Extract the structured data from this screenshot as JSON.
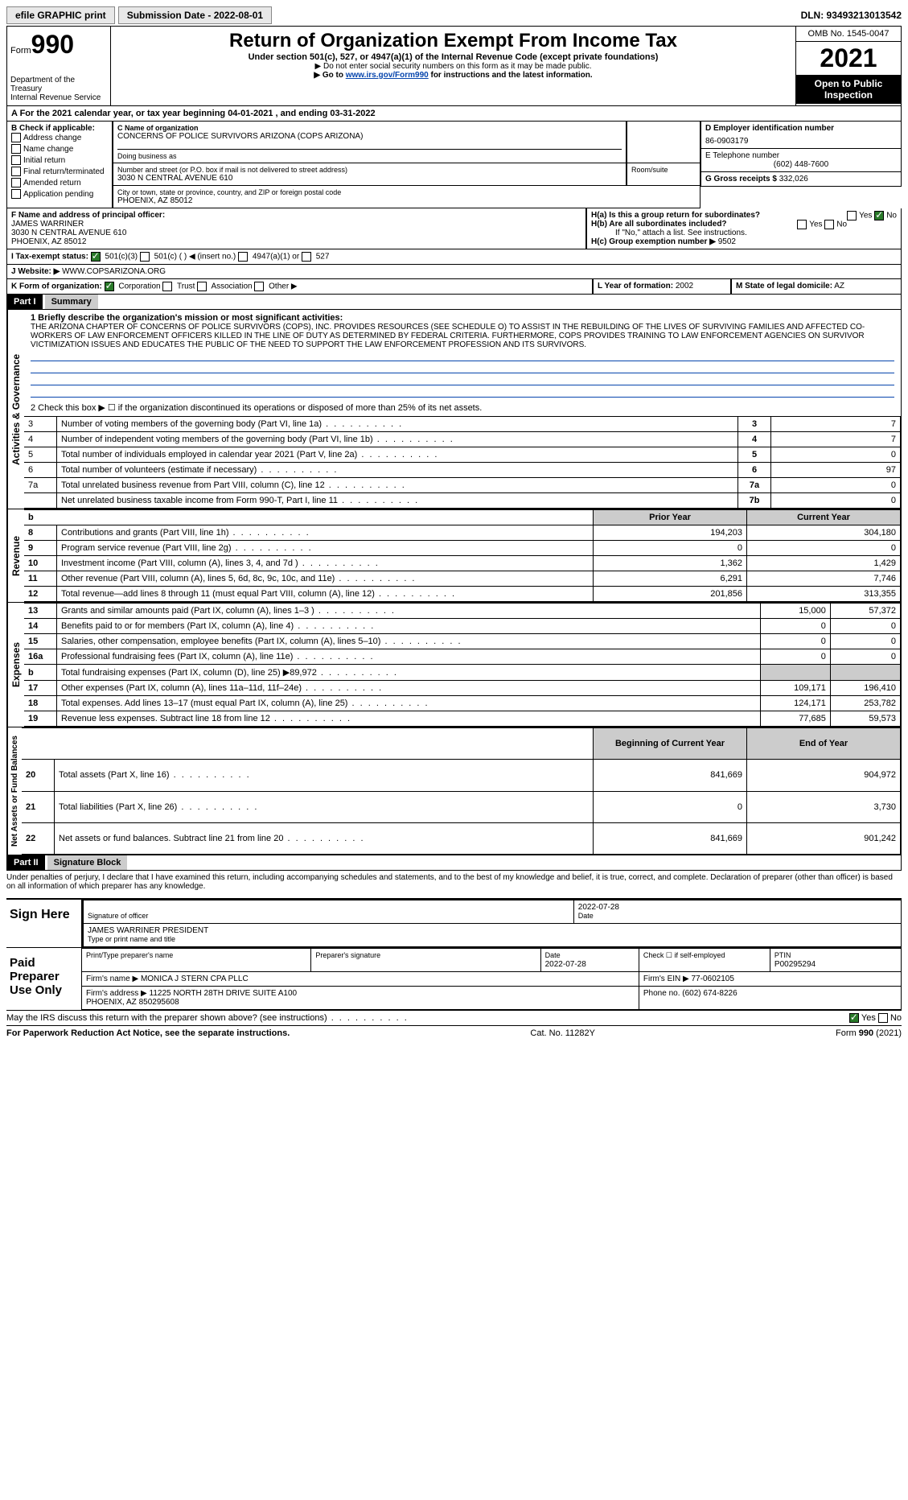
{
  "header": {
    "efile": "efile GRAPHIC print",
    "submission": "Submission Date - 2022-08-01",
    "dln": "DLN: 93493213013542"
  },
  "form": {
    "label": "Form",
    "number": "990",
    "title": "Return of Organization Exempt From Income Tax",
    "subtitle": "Under section 501(c), 527, or 4947(a)(1) of the Internal Revenue Code (except private foundations)",
    "note1": "▶ Do not enter social security numbers on this form as it may be made public.",
    "note2_pre": "▶ Go to ",
    "note2_link": "www.irs.gov/Form990",
    "note2_post": " for instructions and the latest information.",
    "dept": "Department of the Treasury\nInternal Revenue Service",
    "omb": "OMB No. 1545-0047",
    "year": "2021",
    "open": "Open to Public Inspection"
  },
  "section_a": {
    "text": "A For the 2021 calendar year, or tax year beginning 04-01-2021     , and ending 03-31-2022"
  },
  "section_b": {
    "header": "B Check if applicable:",
    "items": [
      "Address change",
      "Name change",
      "Initial return",
      "Final return/terminated",
      "Amended return",
      "Application pending"
    ]
  },
  "section_c": {
    "name_label": "C Name of organization",
    "name": "CONCERNS OF POLICE SURVIVORS ARIZONA (COPS ARIZONA)",
    "dba_label": "Doing business as",
    "addr_label": "Number and street (or P.O. box if mail is not delivered to street address)",
    "addr": "3030 N CENTRAL AVENUE 610",
    "room_label": "Room/suite",
    "city_label": "City or town, state or province, country, and ZIP or foreign postal code",
    "city": "PHOENIX, AZ  85012"
  },
  "section_d": {
    "label": "D Employer identification number",
    "value": "86-0903179"
  },
  "section_e": {
    "label": "E Telephone number",
    "value": "(602) 448-7600"
  },
  "section_g": {
    "label": "G Gross receipts $",
    "value": "332,026"
  },
  "section_f": {
    "label": "F Name and address of principal officer:",
    "name": "JAMES WARRINER",
    "addr1": "3030 N CENTRAL AVENUE 610",
    "addr2": "PHOENIX, AZ  85012"
  },
  "section_h": {
    "ha": "H(a)  Is this a group return for subordinates?",
    "hb": "H(b)  Are all subordinates included?",
    "hb_note": "If \"No,\" attach a list. See instructions.",
    "hc": "H(c)  Group exemption number ▶",
    "hc_val": "9502",
    "yes": "Yes",
    "no": "No"
  },
  "section_i": {
    "label": "I  Tax-exempt status:",
    "opts": [
      "501(c)(3)",
      "501(c) (  ) ◀ (insert no.)",
      "4947(a)(1) or",
      "527"
    ]
  },
  "section_j": {
    "label": "J  Website: ▶",
    "value": "WWW.COPSARIZONA.ORG"
  },
  "section_k": {
    "label": "K Form of organization:",
    "opts": [
      "Corporation",
      "Trust",
      "Association",
      "Other ▶"
    ]
  },
  "section_l": {
    "label": "L Year of formation:",
    "value": "2002"
  },
  "section_m": {
    "label": "M State of legal domicile:",
    "value": "AZ"
  },
  "part1": {
    "header": "Part I",
    "title": "Summary",
    "line1_label": "1  Briefly describe the organization's mission or most significant activities:",
    "line1_text": "THE ARIZONA CHAPTER OF CONCERNS OF POLICE SURVIVORS (COPS), INC. PROVIDES RESOURCES (SEE SCHEDULE O) TO ASSIST IN THE REBUILDING OF THE LIVES OF SURVIVING FAMILIES AND AFFECTED CO-WORKERS OF LAW ENFORCEMENT OFFICERS KILLED IN THE LINE OF DUTY AS DETERMINED BY FEDERAL CRITERIA. FURTHERMORE, COPS PROVIDES TRAINING TO LAW ENFORCEMENT AGENCIES ON SURVIVOR VICTIMIZATION ISSUES AND EDUCATES THE PUBLIC OF THE NEED TO SUPPORT THE LAW ENFORCEMENT PROFESSION AND ITS SURVIVORS.",
    "line2": "2   Check this box ▶ ☐  if the organization discontinued its operations or disposed of more than 25% of its net assets.",
    "vert_gov": "Activities & Governance",
    "vert_rev": "Revenue",
    "vert_exp": "Expenses",
    "vert_net": "Net Assets or Fund Balances"
  },
  "gov_rows": [
    {
      "n": "3",
      "t": "Number of voting members of the governing body (Part VI, line 1a)",
      "c": "3",
      "v": "7"
    },
    {
      "n": "4",
      "t": "Number of independent voting members of the governing body (Part VI, line 1b)",
      "c": "4",
      "v": "7"
    },
    {
      "n": "5",
      "t": "Total number of individuals employed in calendar year 2021 (Part V, line 2a)",
      "c": "5",
      "v": "0"
    },
    {
      "n": "6",
      "t": "Total number of volunteers (estimate if necessary)",
      "c": "6",
      "v": "97"
    },
    {
      "n": "7a",
      "t": "Total unrelated business revenue from Part VIII, column (C), line 12",
      "c": "7a",
      "v": "0"
    },
    {
      "n": "",
      "t": "Net unrelated business taxable income from Form 990-T, Part I, line 11",
      "c": "7b",
      "v": "0"
    }
  ],
  "col_headers": {
    "prior": "Prior Year",
    "current": "Current Year",
    "begin": "Beginning of Current Year",
    "end": "End of Year",
    "b": "b"
  },
  "rev_rows": [
    {
      "n": "8",
      "t": "Contributions and grants (Part VIII, line 1h)",
      "p": "194,203",
      "c": "304,180"
    },
    {
      "n": "9",
      "t": "Program service revenue (Part VIII, line 2g)",
      "p": "0",
      "c": "0"
    },
    {
      "n": "10",
      "t": "Investment income (Part VIII, column (A), lines 3, 4, and 7d )",
      "p": "1,362",
      "c": "1,429"
    },
    {
      "n": "11",
      "t": "Other revenue (Part VIII, column (A), lines 5, 6d, 8c, 9c, 10c, and 11e)",
      "p": "6,291",
      "c": "7,746"
    },
    {
      "n": "12",
      "t": "Total revenue—add lines 8 through 11 (must equal Part VIII, column (A), line 12)",
      "p": "201,856",
      "c": "313,355"
    }
  ],
  "exp_rows": [
    {
      "n": "13",
      "t": "Grants and similar amounts paid (Part IX, column (A), lines 1–3 )",
      "p": "15,000",
      "c": "57,372"
    },
    {
      "n": "14",
      "t": "Benefits paid to or for members (Part IX, column (A), line 4)",
      "p": "0",
      "c": "0"
    },
    {
      "n": "15",
      "t": "Salaries, other compensation, employee benefits (Part IX, column (A), lines 5–10)",
      "p": "0",
      "c": "0"
    },
    {
      "n": "16a",
      "t": "Professional fundraising fees (Part IX, column (A), line 11e)",
      "p": "0",
      "c": "0"
    },
    {
      "n": "b",
      "t": "Total fundraising expenses (Part IX, column (D), line 25) ▶89,972",
      "p": "",
      "c": "",
      "shade": true
    },
    {
      "n": "17",
      "t": "Other expenses (Part IX, column (A), lines 11a–11d, 11f–24e)",
      "p": "109,171",
      "c": "196,410"
    },
    {
      "n": "18",
      "t": "Total expenses. Add lines 13–17 (must equal Part IX, column (A), line 25)",
      "p": "124,171",
      "c": "253,782"
    },
    {
      "n": "19",
      "t": "Revenue less expenses. Subtract line 18 from line 12",
      "p": "77,685",
      "c": "59,573"
    }
  ],
  "net_rows": [
    {
      "n": "20",
      "t": "Total assets (Part X, line 16)",
      "p": "841,669",
      "c": "904,972"
    },
    {
      "n": "21",
      "t": "Total liabilities (Part X, line 26)",
      "p": "0",
      "c": "3,730"
    },
    {
      "n": "22",
      "t": "Net assets or fund balances. Subtract line 21 from line 20",
      "p": "841,669",
      "c": "901,242"
    }
  ],
  "part2": {
    "header": "Part II",
    "title": "Signature Block",
    "declaration": "Under penalties of perjury, I declare that I have examined this return, including accompanying schedules and statements, and to the best of my knowledge and belief, it is true, correct, and complete. Declaration of preparer (other than officer) is based on all information of which preparer has any knowledge."
  },
  "sign": {
    "here": "Sign Here",
    "sig_label": "Signature of officer",
    "date_label": "Date",
    "date": "2022-07-28",
    "name": "JAMES WARRINER  PRESIDENT",
    "name_label": "Type or print name and title"
  },
  "preparer": {
    "label": "Paid Preparer Use Only",
    "print_label": "Print/Type preparer's name",
    "sig_label": "Preparer's signature",
    "date_label": "Date",
    "date": "2022-07-28",
    "self_emp": "Check ☐ if self-employed",
    "ptin_label": "PTIN",
    "ptin": "P00295294",
    "firm_name_label": "Firm's name    ▶",
    "firm_name": "MONICA J STERN CPA PLLC",
    "firm_ein_label": "Firm's EIN ▶",
    "firm_ein": "77-0602105",
    "firm_addr_label": "Firm's address ▶",
    "firm_addr": "11225 NORTH 28TH DRIVE SUITE A100\n                    PHOENIX, AZ  850295608",
    "phone_label": "Phone no.",
    "phone": "(602) 674-8226"
  },
  "may_irs": "May the IRS discuss this return with the preparer shown above? (see instructions)",
  "footer": {
    "left": "For Paperwork Reduction Act Notice, see the separate instructions.",
    "mid": "Cat. No. 11282Y",
    "right_pre": "Form ",
    "right_num": "990",
    "right_post": " (2021)"
  }
}
